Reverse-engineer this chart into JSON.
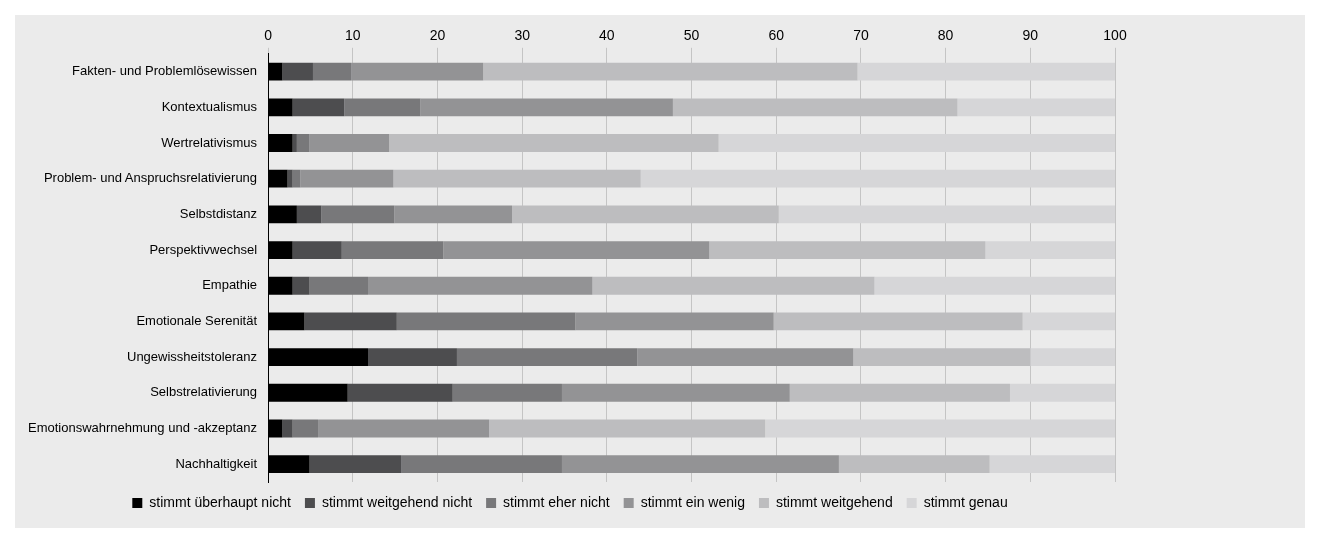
{
  "chart_data": {
    "type": "bar",
    "orientation": "horizontal",
    "stacked": true,
    "categories": [
      "Fakten- und Problemlösewissen",
      "Kontextualismus",
      "Wertrelativismus",
      "Problem- und Anspruchsrelativierung",
      "Selbstdistanz",
      "Perspektivwechsel",
      "Empathie",
      "Emotionale Serenität",
      "Ungewissheitstoleranz",
      "Selbstrelativierung",
      "Emotionswahrnehmung und -akzeptanz",
      "Nachhaltigkeit"
    ],
    "series": [
      {
        "name": "stimmt überhaupt nicht",
        "color": "#000000",
        "values": [
          1.7,
          2.9,
          2.9,
          2.3,
          3.4,
          2.9,
          2.9,
          4.3,
          11.8,
          9.4,
          1.7,
          4.9
        ]
      },
      {
        "name": "stimmt weitgehend nicht",
        "color": "#4d4d4f",
        "values": [
          3.6,
          6.1,
          0.5,
          0.6,
          2.9,
          5.8,
          2.0,
          10.9,
          10.5,
          12.4,
          1.2,
          10.8
        ]
      },
      {
        "name": "stimmt eher nicht",
        "color": "#78787a",
        "values": [
          4.5,
          9.0,
          1.5,
          0.9,
          8.6,
          12.0,
          6.9,
          21.1,
          21.3,
          12.9,
          3.0,
          19.0
        ]
      },
      {
        "name": "stimmt ein wenig",
        "color": "#939395",
        "values": [
          15.6,
          29.8,
          9.4,
          11.0,
          13.9,
          31.4,
          26.5,
          23.4,
          25.5,
          26.9,
          20.2,
          32.7
        ]
      },
      {
        "name": "stimmt weitgehend",
        "color": "#bdbdbf",
        "values": [
          44.2,
          33.6,
          38.9,
          29.2,
          31.5,
          32.6,
          33.3,
          29.4,
          20.9,
          26.0,
          32.6,
          17.8
        ]
      },
      {
        "name": "stimmt genau",
        "color": "#d6d6d8",
        "values": [
          30.4,
          18.6,
          46.8,
          56.0,
          39.7,
          15.3,
          28.4,
          10.9,
          10.0,
          12.4,
          41.3,
          14.8
        ]
      }
    ],
    "xlim": [
      0,
      100
    ],
    "xticks": [
      0,
      10,
      20,
      30,
      40,
      50,
      60,
      70,
      80,
      90,
      100
    ],
    "grid": "x",
    "legend": "bottom"
  }
}
